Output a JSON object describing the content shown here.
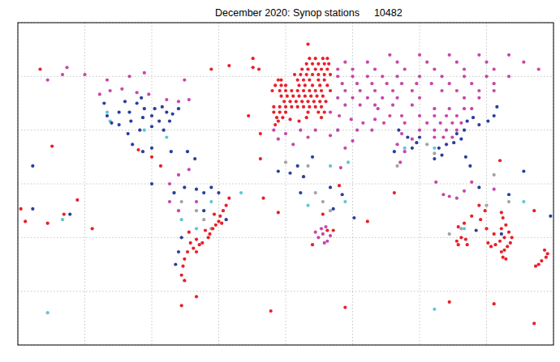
{
  "chart_data": {
    "type": "scatter",
    "title": "December 2020: Synop stations",
    "station_count": 10482,
    "xlim": [
      -180,
      180
    ],
    "ylim": [
      -90,
      90
    ],
    "xticks": [
      -180,
      -135,
      -90,
      -45,
      0,
      45,
      90,
      135,
      180
    ],
    "yticks": [
      -90,
      -60,
      -30,
      0,
      30,
      60,
      90
    ],
    "grid": true,
    "tick_labels": false,
    "marker": "circle",
    "series": [
      {
        "color": "#a3a3a3",
        "x": [
          -60,
          -55,
          -70,
          25,
          20,
          30,
          110,
          118,
          135,
          150,
          95,
          100,
          75,
          -75,
          0,
          15,
          140,
          -50
        ],
        "values": [
          -15,
          -20,
          -10,
          -10,
          -5,
          -15,
          -28,
          -25,
          -12,
          -10,
          22,
          17,
          10,
          -5,
          12,
          10,
          5,
          -25
        ]
      },
      {
        "color": "#5cc8d8",
        "x": [
          -118,
          -95,
          -80,
          -70,
          -50,
          -60,
          30,
          15,
          40,
          80,
          100,
          120,
          160,
          -150,
          -120,
          35,
          -160,
          100,
          -30,
          42
        ],
        "values": [
          35,
          30,
          26,
          -20,
          -10,
          -25,
          10,
          -12,
          -10,
          20,
          20,
          -25,
          -10,
          -20,
          40,
          30,
          -72,
          -70,
          -5,
          12
        ]
      },
      {
        "color": "#2b3f9c",
        "x": [
          -122,
          -120,
          -117,
          -112,
          -112,
          -105,
          -104,
          -98,
          -96,
          -95,
          -90,
          -88,
          -85,
          -82,
          -80,
          -76,
          -72,
          -100,
          -108,
          -90,
          -83,
          -78,
          -97,
          -106,
          -103,
          -96,
          -90,
          -66,
          -77,
          -61,
          -75,
          -68,
          -60,
          -55,
          -50,
          -45,
          -40,
          -55,
          -70,
          -72,
          -74,
          3,
          -5,
          8,
          12,
          30,
          38,
          32,
          46,
          10,
          18,
          88,
          85,
          90,
          82,
          73,
          76,
          115,
          120,
          118,
          122,
          126,
          130,
          136,
          140,
          142,
          113,
          108,
          100,
          105,
          121,
          124,
          103,
          130,
          150,
          -170,
          -145,
          178,
          -170,
          160,
          -90,
          145,
          128
        ],
        "values": [
          45,
          38,
          34,
          40,
          33,
          40,
          35,
          30,
          37,
          42,
          38,
          42,
          35,
          30,
          40,
          39,
          42,
          45,
          46,
          32,
          43,
          35,
          48,
          28,
          22,
          18,
          20,
          18,
          18,
          14,
          -5,
          -2,
          -3,
          -5,
          -2,
          -5,
          -20,
          -15,
          -30,
          -38,
          -45,
          6,
          7,
          10,
          4,
          -2,
          -6,
          -14,
          -19,
          -5,
          15,
          23,
          20,
          26,
          26,
          18,
          30,
          28,
          30,
          25,
          35,
          37,
          33,
          35,
          38,
          43,
          23,
          22,
          14,
          16,
          15,
          10,
          20,
          -2,
          -6,
          -14,
          -17,
          -18,
          10,
          7,
          0,
          -28,
          -26
        ]
      },
      {
        "color": "#c846aa",
        "x": [
          70,
          90,
          110,
          130,
          150,
          40,
          55,
          75,
          95,
          115,
          135,
          160,
          35,
          45,
          60,
          80,
          100,
          120,
          140,
          170,
          35,
          45,
          55,
          65,
          75,
          90,
          105,
          120,
          135,
          150,
          38,
          48,
          58,
          68,
          78,
          88,
          98,
          110,
          125,
          140,
          40,
          50,
          60,
          72,
          85,
          105,
          115,
          130,
          140,
          35,
          45,
          55,
          65,
          75,
          90,
          120,
          130,
          40,
          50,
          60,
          72,
          85,
          100,
          110,
          120,
          125,
          78,
          90,
          100,
          108,
          115,
          80,
          95,
          104,
          112,
          118,
          90,
          100,
          108,
          115,
          100,
          106,
          112,
          30,
          36,
          44,
          52,
          58,
          48,
          60,
          66,
          70,
          62,
          45,
          40,
          35,
          30,
          -8,
          0,
          10,
          15,
          20,
          5,
          -5,
          75,
          80,
          78,
          85,
          77,
          -125,
          -118,
          -110,
          -100,
          -92,
          -80,
          -72,
          -65,
          -120,
          -105,
          -95,
          -68,
          -135,
          -150,
          -147,
          -160,
          25,
          22,
          28,
          30,
          24,
          27,
          20,
          26,
          101,
          110,
          115,
          106,
          120,
          125,
          140,
          37,
          -78,
          -72,
          -65,
          -78,
          -72,
          -60
        ],
        "values": [
          72,
          72,
          72,
          72,
          72,
          68,
          68,
          68,
          68,
          68,
          68,
          68,
          64,
          64,
          64,
          64,
          64,
          64,
          64,
          64,
          60,
          60,
          60,
          60,
          60,
          60,
          60,
          60,
          60,
          60,
          56,
          56,
          56,
          56,
          56,
          56,
          56,
          56,
          56,
          56,
          52,
          52,
          52,
          52,
          52,
          52,
          52,
          52,
          52,
          48,
          48,
          48,
          48,
          48,
          48,
          48,
          48,
          44,
          44,
          44,
          44,
          44,
          42,
          42,
          42,
          42,
          38,
          38,
          38,
          38,
          38,
          34,
          34,
          34,
          34,
          34,
          30,
          30,
          30,
          30,
          26,
          26,
          26,
          40,
          38,
          36,
          34,
          30,
          30,
          36,
          34,
          38,
          42,
          24,
          20,
          30,
          27,
          30,
          28,
          30,
          26,
          30,
          22,
          25,
          22,
          18,
          28,
          25,
          12,
          50,
          52,
          53,
          51,
          50,
          47,
          46,
          47,
          58,
          60,
          62,
          58,
          61,
          61,
          65,
          58,
          -28,
          -30,
          -32,
          -29,
          -25,
          -24,
          -27,
          -33,
          1,
          -7,
          -8,
          -6,
          -4,
          1,
          -3,
          9,
          0,
          5,
          8,
          -10,
          -15,
          -10
        ]
      },
      {
        "color": "#e8202a",
        "x": [
          20,
          25,
          28,
          16,
          14,
          18,
          22,
          26,
          29,
          11,
          15,
          20,
          24,
          28,
          6,
          10,
          14,
          18,
          22,
          26,
          30,
          -5,
          -3,
          8,
          12,
          16,
          22,
          26,
          -7,
          -3,
          0,
          9,
          13,
          18,
          23,
          28,
          -9,
          -4,
          0,
          4,
          8,
          12,
          16,
          20,
          24,
          30,
          -3,
          1,
          5,
          9,
          13,
          17,
          21,
          25,
          -1,
          3,
          7,
          11,
          15,
          19,
          23,
          27,
          -8,
          -4,
          0,
          4,
          8,
          12,
          16,
          20,
          24,
          -8,
          -4,
          0,
          15,
          22,
          26,
          -6,
          -2,
          14,
          24,
          -22,
          -18,
          -7,
          -5,
          3,
          9,
          -50,
          -38,
          -22,
          15,
          -165,
          115,
          116,
          118,
          121,
          122,
          145,
          147,
          149,
          151,
          152,
          150,
          147,
          144,
          141,
          138,
          136,
          140,
          145,
          148,
          146,
          145,
          135,
          131,
          134,
          130,
          125,
          120,
          116,
          148,
          146,
          174,
          176,
          175,
          172,
          170,
          168,
          -47,
          -45,
          -43,
          -49,
          -51,
          -52,
          -54,
          -48,
          -44,
          -42,
          -40,
          -38,
          -56,
          -58,
          -60,
          -62,
          -64,
          -65,
          -66,
          -68,
          -69,
          -70,
          -68,
          -60,
          -157,
          -160,
          -175,
          -149,
          -140,
          -25,
          -17,
          -15,
          -5,
          73,
          55,
          -130,
          167,
          -178,
          144,
          -60,
          -10,
          40,
          110,
          140,
          167,
          -70,
          -90,
          -84,
          -99,
          32,
          28,
          18,
          -17,
          36,
          25
        ],
        "values": [
          70,
          70,
          70,
          70,
          67,
          67,
          67,
          67,
          67,
          64,
          64,
          64,
          64,
          64,
          61,
          61,
          61,
          61,
          61,
          61,
          61,
          58,
          58,
          58,
          58,
          58,
          58,
          58,
          55,
          55,
          55,
          55,
          55,
          55,
          55,
          55,
          52,
          52,
          52,
          52,
          52,
          52,
          52,
          52,
          52,
          52,
          49,
          49,
          49,
          49,
          49,
          49,
          49,
          49,
          46,
          46,
          46,
          46,
          46,
          46,
          46,
          46,
          43,
          43,
          43,
          43,
          43,
          43,
          43,
          43,
          43,
          40,
          40,
          40,
          40,
          40,
          40,
          37,
          37,
          37,
          37,
          65,
          64,
          33,
          35,
          36,
          35,
          64,
          66,
          70,
          78,
          64,
          -32,
          -34,
          -30,
          -31,
          -34,
          -38,
          -37,
          -35,
          -33,
          -30,
          -27,
          -30,
          -32,
          -34,
          -35,
          -33,
          -28,
          -25,
          -23,
          -19,
          -16,
          -25,
          -20,
          -15,
          -12,
          -18,
          -22,
          -24,
          -42,
          -41,
          -37,
          -39,
          -41,
          -43,
          -45,
          -46,
          -23,
          -21,
          -22,
          -25,
          -28,
          -30,
          -26,
          -17,
          -18,
          -15,
          -12,
          -8,
          -33,
          -34,
          -31,
          -36,
          -33,
          -27,
          -38,
          -42,
          -46,
          -51,
          -54,
          -38,
          21,
          -22,
          -21,
          -17,
          -9,
          38,
          28,
          -8,
          -16,
          -5,
          -21,
          -25,
          -15,
          -14,
          13,
          -63,
          -71,
          -69,
          -66,
          -67,
          -78,
          -68,
          15,
          10,
          19,
          -26,
          -26,
          -34,
          14,
          -1,
          -17
        ]
      }
    ]
  }
}
